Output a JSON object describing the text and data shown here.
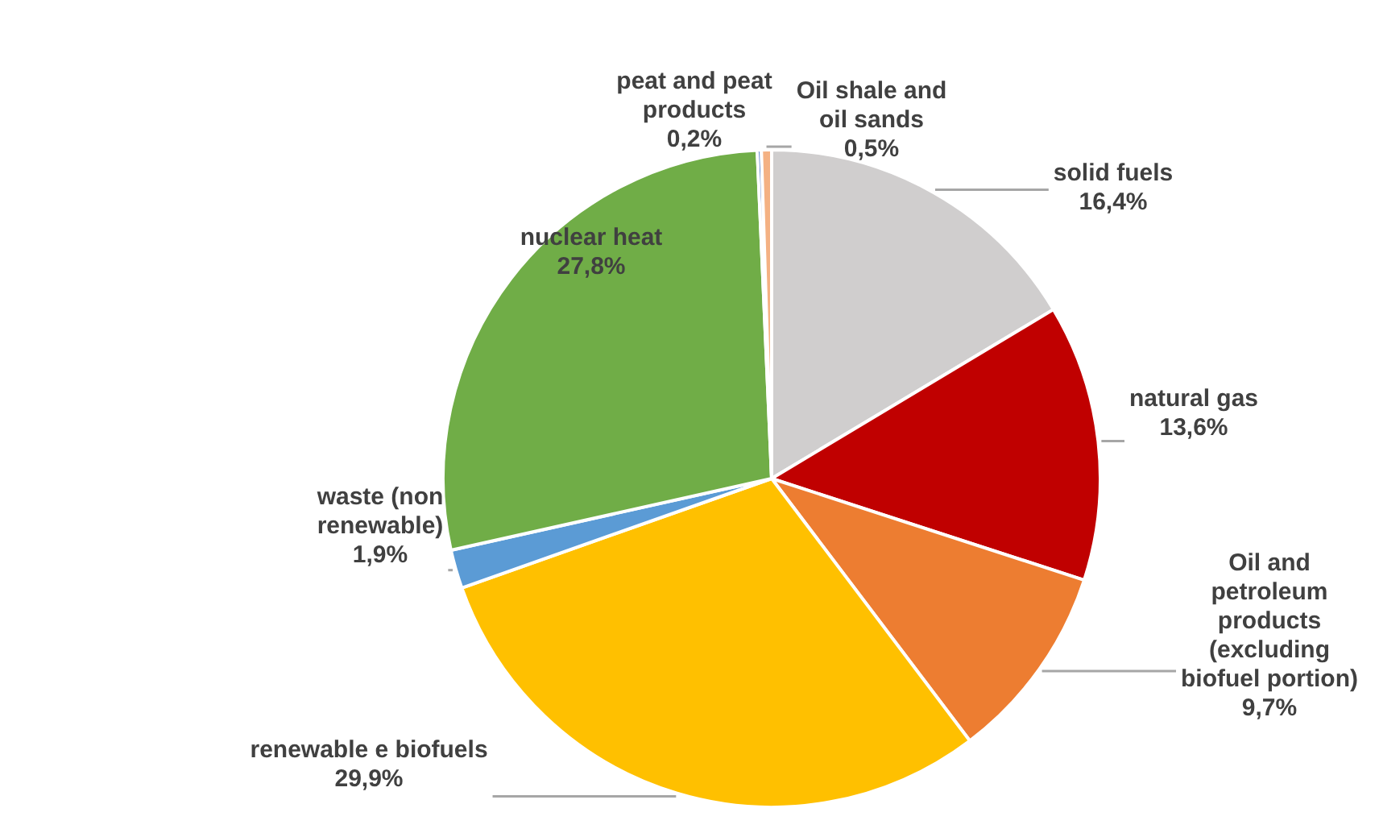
{
  "chart_data": {
    "type": "pie",
    "categories": [
      "solid fuels",
      "natural gas",
      "Oil and petroleum products (excluding biofuel portion)",
      "renewable e biofuels",
      "waste (non renewable)",
      "nuclear heat",
      "peat and peat products",
      "Oil shale and oil sands"
    ],
    "values": [
      16.4,
      13.6,
      9.7,
      29.9,
      1.9,
      27.8,
      0.2,
      0.5
    ],
    "colors": [
      "#d0cece",
      "#c00000",
      "#ed7d31",
      "#ffc000",
      "#5b9bd5",
      "#70ad47",
      "#4472c4",
      "#f4b183"
    ],
    "value_labels": [
      "16,4%",
      "13,6%",
      "9,7%",
      "29,9%",
      "1,9%",
      "27,8%",
      "0,2%",
      "0,5%"
    ],
    "legend": false
  }
}
